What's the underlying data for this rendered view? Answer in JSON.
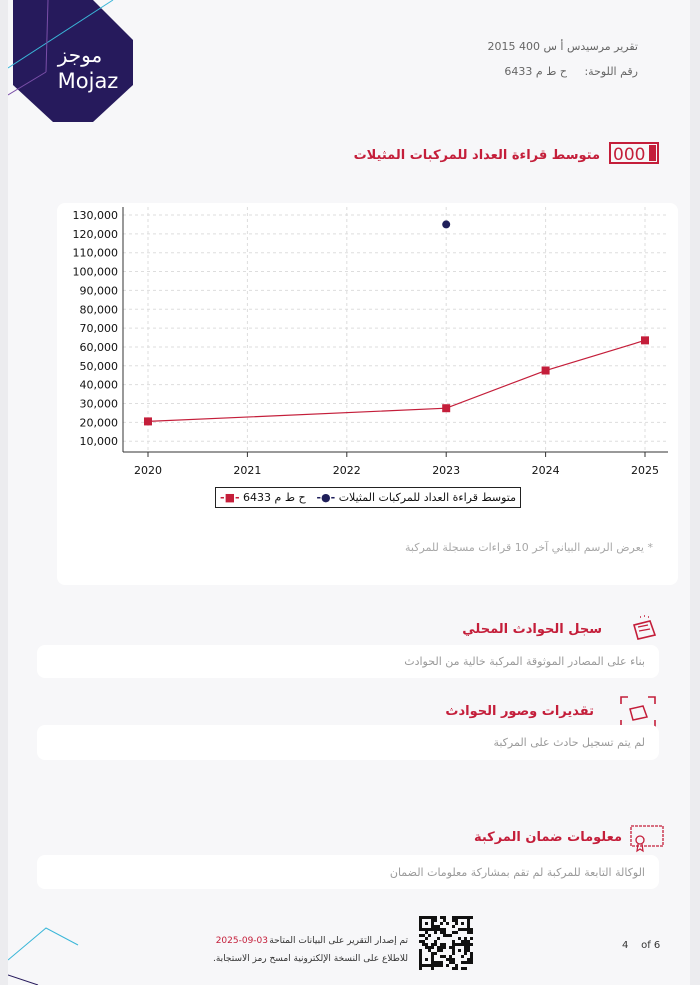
{
  "logo": {
    "arabic": "موجز",
    "latin": "Mojaz",
    "colors": {
      "hex": "#261a5c",
      "line": "#3ab6d8"
    }
  },
  "header": {
    "report_title": "تقرير مرسيدس أ س 400 2015",
    "plate_label": "رقم اللوحة:",
    "plate_value": "ح ط م 6433"
  },
  "odometer_section": {
    "title": "متوسط قراءة العداد للمركبات المثيلات",
    "icon": "odometer-icon",
    "note": "* يعرض الرسم البياني آخر 10 قراءات مسجلة للمركبة"
  },
  "chart_data": {
    "type": "line",
    "x": [
      2020,
      2021,
      2022,
      2023,
      2024,
      2025
    ],
    "xlim": [
      2020,
      2025
    ],
    "ylim": [
      10000,
      130000
    ],
    "yticks": [
      10000,
      20000,
      30000,
      40000,
      50000,
      60000,
      70000,
      80000,
      90000,
      100000,
      110000,
      120000,
      130000
    ],
    "ytick_labels": [
      "10,000",
      "20,000",
      "30,000",
      "40,000",
      "50,000",
      "60,000",
      "70,000",
      "80,000",
      "90,000",
      "100,000",
      "110,000",
      "120,000",
      "130,000"
    ],
    "xtick_labels": [
      "2020",
      "2021",
      "2022",
      "2023",
      "2024",
      "2025"
    ],
    "grid": true,
    "legend": "bottom",
    "series": [
      {
        "name": "ح ط م 6433",
        "color": "#c41e3a",
        "marker": "square",
        "points": [
          [
            2020,
            20500
          ],
          [
            2023,
            27500
          ],
          [
            2024,
            47500
          ],
          [
            2025,
            63500
          ]
        ]
      },
      {
        "name": "متوسط قراءة العداد للمركبات المثيلات",
        "color": "#1f1f5a",
        "marker": "circle",
        "points": [
          [
            2023,
            125000
          ]
        ]
      }
    ]
  },
  "sections": [
    {
      "title": "سجل الحوادث المحلي",
      "icon": "car-crash-icon",
      "text": "بناء على المصادر الموثوقة المركبة خالية من الحوادث"
    },
    {
      "title": "تقديرات وصور الحوادث",
      "icon": "car-crash-photo-icon",
      "text": "لم يتم تسجيل حادث على المركبة"
    },
    {
      "title": "معلومات ضمان المركبة",
      "icon": "warranty-certificate-icon",
      "text": "الوكالة التابعة للمركبة لم تقم بمشاركة معلومات الضمان"
    }
  ],
  "footer": {
    "issued_text": "تم إصدار التقرير على البيانات المتاحة",
    "date": "2025-09-03",
    "scan_text": "للاطلاع على النسخة الإلكترونية امسح رمز الاستجابة.",
    "page_current": "4",
    "page_of": "of 6",
    "accent": "#c41e3a"
  }
}
